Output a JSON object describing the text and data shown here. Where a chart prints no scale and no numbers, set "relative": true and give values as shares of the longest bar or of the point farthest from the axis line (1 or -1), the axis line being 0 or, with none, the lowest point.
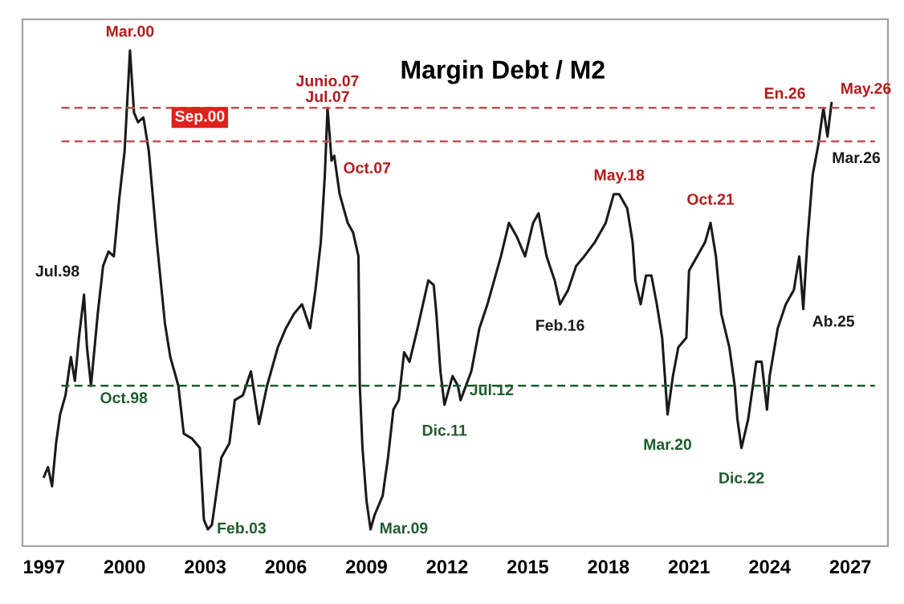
{
  "chart_data": {
    "type": "line",
    "title": "Margin Debt / M2",
    "relative": true,
    "x": [
      1997.0,
      1997.15,
      1997.3,
      1997.45,
      1997.6,
      1997.8,
      1998.0,
      1998.15,
      1998.3,
      1998.49,
      1998.6,
      1998.75,
      1999.0,
      1999.2,
      1999.4,
      1999.6,
      1999.8,
      2000.0,
      2000.2,
      2000.35,
      2000.5,
      2000.7,
      2000.9,
      2001.2,
      2001.5,
      2001.7,
      2002.0,
      2002.2,
      2002.5,
      2002.8,
      2002.95,
      2003.1,
      2003.25,
      2003.4,
      2003.6,
      2003.9,
      2004.1,
      2004.4,
      2004.7,
      2005.0,
      2005.3,
      2005.7,
      2006.0,
      2006.3,
      2006.6,
      2006.9,
      2007.1,
      2007.3,
      2007.45,
      2007.55,
      2007.7,
      2007.8,
      2008.0,
      2008.3,
      2008.5,
      2008.7,
      2008.75,
      2008.85,
      2009.0,
      2009.15,
      2009.3,
      2009.6,
      2009.8,
      2010.0,
      2010.2,
      2010.4,
      2010.6,
      2010.9,
      2011.1,
      2011.3,
      2011.5,
      2011.6,
      2011.75,
      2011.9,
      2012.2,
      2012.4,
      2012.5,
      2012.9,
      2013.2,
      2013.5,
      2014.0,
      2014.3,
      2014.6,
      2014.9,
      2015.2,
      2015.4,
      2015.7,
      2016.0,
      2016.2,
      2016.5,
      2016.8,
      2017.1,
      2017.5,
      2017.9,
      2018.2,
      2018.4,
      2018.7,
      2018.9,
      2019.0,
      2019.2,
      2019.4,
      2019.6,
      2019.8,
      2020.0,
      2020.2,
      2020.4,
      2020.6,
      2020.9,
      2021.0,
      2021.3,
      2021.6,
      2021.8,
      2022.0,
      2022.2,
      2022.5,
      2022.7,
      2022.8,
      2022.95,
      2023.2,
      2023.5,
      2023.7,
      2023.9,
      2024.0,
      2024.3,
      2024.6,
      2024.9,
      2025.1,
      2025.25,
      2025.4,
      2025.6,
      2025.8,
      2026.0,
      2026.15,
      2026.3
    ],
    "series": [
      {
        "color": "#1a1a1a",
        "values": [
          0.11,
          0.13,
          0.09,
          0.18,
          0.24,
          0.28,
          0.36,
          0.31,
          0.4,
          0.49,
          0.38,
          0.3,
          0.45,
          0.55,
          0.58,
          0.57,
          0.69,
          0.79,
          1.0,
          0.87,
          0.85,
          0.86,
          0.79,
          0.6,
          0.43,
          0.36,
          0.3,
          0.2,
          0.19,
          0.17,
          0.02,
          0.0,
          0.01,
          0.07,
          0.15,
          0.18,
          0.27,
          0.28,
          0.33,
          0.22,
          0.3,
          0.38,
          0.42,
          0.45,
          0.47,
          0.42,
          0.5,
          0.6,
          0.74,
          0.88,
          0.77,
          0.78,
          0.7,
          0.64,
          0.62,
          0.57,
          0.3,
          0.17,
          0.06,
          0.0,
          0.03,
          0.07,
          0.15,
          0.25,
          0.27,
          0.37,
          0.35,
          0.42,
          0.47,
          0.52,
          0.51,
          0.45,
          0.33,
          0.26,
          0.32,
          0.3,
          0.27,
          0.33,
          0.42,
          0.47,
          0.57,
          0.64,
          0.61,
          0.57,
          0.64,
          0.66,
          0.57,
          0.52,
          0.47,
          0.5,
          0.55,
          0.57,
          0.6,
          0.64,
          0.7,
          0.7,
          0.67,
          0.6,
          0.52,
          0.47,
          0.53,
          0.53,
          0.47,
          0.4,
          0.24,
          0.32,
          0.38,
          0.4,
          0.54,
          0.57,
          0.6,
          0.64,
          0.57,
          0.45,
          0.38,
          0.3,
          0.23,
          0.17,
          0.23,
          0.35,
          0.35,
          0.25,
          0.32,
          0.42,
          0.47,
          0.5,
          0.57,
          0.46,
          0.6,
          0.74,
          0.8,
          0.88,
          0.82,
          0.89
        ]
      }
    ],
    "xlim": [
      1996.2,
      2028.4
    ],
    "xticks": [
      1997,
      2000,
      2003,
      2006,
      2009,
      2012,
      2015,
      2018,
      2021,
      2024,
      2027
    ],
    "grid": false,
    "legend": false,
    "tick_labels": "x",
    "ref_lines": [
      {
        "axis": "y",
        "value": 0.88,
        "color": "#c0504d",
        "line_style": "dashed"
      },
      {
        "axis": "y",
        "value": 0.81,
        "color": "#c0504d",
        "line_style": "dashed"
      },
      {
        "axis": "y",
        "value": 0.3,
        "color": "#1e5c2e",
        "line_style": "dashed"
      }
    ],
    "annotations": [
      {
        "text": "Mar.00",
        "x": 2000.2,
        "y": 1.0
      },
      {
        "text": "Sep.00",
        "x": 2000.7,
        "y": 0.86
      },
      {
        "text": "Jul.98",
        "x": 1998.49,
        "y": 0.49
      },
      {
        "text": "Oct.98",
        "x": 1998.75,
        "y": 0.3
      },
      {
        "text": "Feb.03",
        "x": 2003.1,
        "y": 0.0
      },
      {
        "text": "Junio.07\nJul.07",
        "x": 2007.55,
        "y": 0.88
      },
      {
        "text": "Oct.07",
        "x": 2007.8,
        "y": 0.78
      },
      {
        "text": "Mar.09",
        "x": 2009.15,
        "y": 0.0
      },
      {
        "text": "Dic.11",
        "x": 2011.9,
        "y": 0.26
      },
      {
        "text": "Jul.12",
        "x": 2012.5,
        "y": 0.27
      },
      {
        "text": "Feb.16",
        "x": 2016.2,
        "y": 0.47
      },
      {
        "text": "May.18",
        "x": 2018.4,
        "y": 0.7
      },
      {
        "text": "Mar.20",
        "x": 2020.2,
        "y": 0.24
      },
      {
        "text": "Oct.21",
        "x": 2021.8,
        "y": 0.64
      },
      {
        "text": "Dic.22",
        "x": 2022.95,
        "y": 0.17
      },
      {
        "text": "Ab.25",
        "x": 2025.25,
        "y": 0.46
      },
      {
        "text": "En.26",
        "x": 2026.0,
        "y": 0.88
      },
      {
        "text": "Mar.26",
        "x": 2026.15,
        "y": 0.82
      },
      {
        "text": "May.26",
        "x": 2026.3,
        "y": 0.89
      }
    ]
  }
}
